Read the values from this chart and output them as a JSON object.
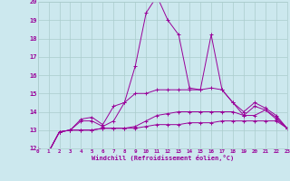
{
  "xlabel": "Windchill (Refroidissement éolien,°C)",
  "bg_color": "#cce8ee",
  "grid_color": "#aacccc",
  "line_color": "#990099",
  "xmin": 0,
  "xmax": 23,
  "ymin": 12,
  "ymax": 20,
  "series": [
    [
      12.0,
      11.8,
      12.9,
      13.0,
      13.0,
      13.0,
      13.1,
      13.1,
      13.1,
      13.1,
      13.2,
      13.3,
      13.3,
      13.3,
      13.4,
      13.4,
      13.4,
      13.5,
      13.5,
      13.5,
      13.5,
      13.5,
      13.5,
      13.1
    ],
    [
      12.0,
      11.8,
      12.9,
      13.0,
      13.0,
      13.0,
      13.1,
      13.1,
      13.1,
      13.2,
      13.5,
      13.8,
      13.9,
      14.0,
      14.0,
      14.0,
      14.0,
      14.0,
      14.0,
      13.8,
      13.8,
      14.1,
      13.7,
      13.1
    ],
    [
      12.0,
      11.8,
      12.9,
      13.0,
      13.5,
      13.5,
      13.2,
      13.5,
      14.5,
      15.0,
      15.0,
      15.2,
      15.2,
      15.2,
      15.2,
      15.2,
      15.3,
      15.2,
      14.5,
      13.8,
      14.3,
      14.1,
      13.6,
      13.1
    ],
    [
      12.0,
      11.8,
      12.9,
      13.0,
      13.6,
      13.7,
      13.3,
      14.3,
      14.5,
      16.5,
      19.4,
      20.3,
      19.0,
      18.2,
      15.3,
      15.2,
      18.2,
      15.2,
      14.5,
      14.0,
      14.5,
      14.2,
      13.8,
      13.1
    ]
  ]
}
